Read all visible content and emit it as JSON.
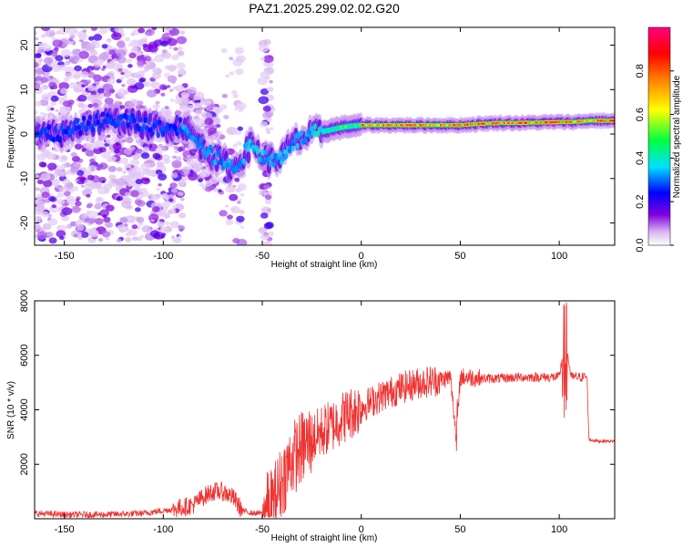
{
  "chart_data": [
    {
      "type": "heatmap",
      "title": "PAZ1.2025.299.02.02.G20",
      "xlabel": "Height of straight line (km)",
      "ylabel": "Frequency (Hz)",
      "xlim": [
        -165,
        128
      ],
      "ylim": [
        -25,
        24
      ],
      "xticks": [
        -150,
        -100,
        -50,
        0,
        50,
        100
      ],
      "yticks": [
        -20,
        -10,
        0,
        10,
        20
      ],
      "colorbar": {
        "label": "Normalized spectral amplitude",
        "range": [
          0,
          1
        ],
        "ticks": [
          0.0,
          0.2,
          0.4,
          0.6,
          0.8
        ]
      },
      "ridge": {
        "description": "Main spectral peak frequency track",
        "x": [
          -160,
          -150,
          -140,
          -130,
          -120,
          -110,
          -100,
          -90,
          -85,
          -80,
          -75,
          -70,
          -65,
          -60,
          -55,
          -50,
          -45,
          -40,
          -35,
          -30,
          -25,
          -20,
          -15,
          -10,
          -5,
          0,
          10,
          20,
          30,
          40,
          50,
          60,
          70,
          80,
          90,
          100,
          105,
          110,
          115,
          120,
          128
        ],
        "y": [
          0,
          0,
          2,
          3,
          3,
          2,
          1,
          2,
          0,
          -3,
          -5,
          -6,
          -8,
          -5,
          -2,
          -5,
          -6,
          -5,
          -2,
          -1,
          0,
          0.5,
          1,
          1.5,
          1.8,
          2,
          2,
          2,
          2,
          2,
          2,
          2.3,
          2.5,
          2.5,
          2.6,
          2.7,
          2.7,
          2.8,
          3,
          3,
          3
        ]
      }
    },
    {
      "type": "line",
      "title": "",
      "xlabel": "Height of straight line (km)",
      "ylabel": "SNR (10 * v/v)",
      "xlim": [
        -165,
        128
      ],
      "ylim": [
        0,
        8000
      ],
      "xticks": [
        -150,
        -100,
        -50,
        0,
        50,
        100
      ],
      "yticks": [
        2000,
        4000,
        6000,
        8000
      ],
      "series": [
        {
          "name": "SNR",
          "color": "#ee3333",
          "x": [
            -165,
            -150,
            -130,
            -110,
            -95,
            -85,
            -80,
            -75,
            -70,
            -65,
            -60,
            -55,
            -50,
            -45,
            -40,
            -35,
            -30,
            -25,
            -20,
            -15,
            -10,
            -5,
            0,
            5,
            10,
            15,
            20,
            25,
            30,
            35,
            40,
            45,
            48,
            50,
            55,
            60,
            70,
            80,
            90,
            100,
            103,
            106,
            110,
            114,
            115,
            120,
            128
          ],
          "y": [
            200,
            150,
            150,
            200,
            350,
            500,
            800,
            1000,
            1000,
            800,
            300,
            200,
            200,
            500,
            1400,
            2200,
            2600,
            2900,
            3200,
            3400,
            3700,
            3900,
            4100,
            4300,
            4500,
            4650,
            4800,
            4900,
            5000,
            5050,
            5100,
            5200,
            3000,
            5200,
            5200,
            5150,
            5150,
            5200,
            5200,
            5200,
            6600,
            5200,
            5200,
            5200,
            2900,
            2850,
            2850
          ]
        }
      ]
    }
  ]
}
